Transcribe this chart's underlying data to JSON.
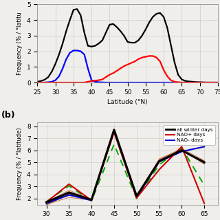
{
  "top_panel": {
    "latitudes": [
      25,
      26,
      27,
      28,
      29,
      30,
      31,
      32,
      33,
      34,
      35,
      36,
      37,
      38,
      39,
      40,
      41,
      42,
      43,
      44,
      45,
      46,
      47,
      48,
      49,
      50,
      51,
      52,
      53,
      54,
      55,
      56,
      57,
      58,
      59,
      60,
      61,
      62,
      63,
      64,
      65,
      66,
      67,
      68,
      69,
      70,
      71,
      72,
      73,
      74,
      75
    ],
    "black_line": [
      0.05,
      0.1,
      0.18,
      0.35,
      0.7,
      1.2,
      1.8,
      2.5,
      3.3,
      4.0,
      4.65,
      4.7,
      4.3,
      3.2,
      2.35,
      2.3,
      2.35,
      2.5,
      2.7,
      3.2,
      3.7,
      3.75,
      3.55,
      3.3,
      3.0,
      2.6,
      2.55,
      2.55,
      2.7,
      3.0,
      3.4,
      3.85,
      4.2,
      4.4,
      4.45,
      4.2,
      3.5,
      2.4,
      1.3,
      0.5,
      0.2,
      0.1,
      0.07,
      0.05,
      0.03,
      0.02,
      0.01,
      0.0,
      0.0,
      0.0,
      0.0
    ],
    "blue_line": [
      0.0,
      0.0,
      0.0,
      0.02,
      0.05,
      0.15,
      0.4,
      0.9,
      1.5,
      1.9,
      2.05,
      2.05,
      2.0,
      1.8,
      0.9,
      0.15,
      0.05,
      0.02,
      0.01,
      0.0,
      0.0,
      0.0,
      0.0,
      0.0,
      0.0,
      0.0,
      0.0,
      0.0,
      0.0,
      0.0,
      0.0,
      0.0,
      0.0,
      0.0,
      0.0,
      0.0,
      0.0,
      0.0,
      0.0,
      0.0,
      0.0,
      0.0,
      0.0,
      0.0,
      0.0,
      0.0,
      0.0,
      0.0,
      0.0,
      0.0,
      0.0
    ],
    "red_line": [
      0.0,
      0.0,
      0.0,
      0.0,
      0.0,
      0.0,
      0.0,
      0.0,
      0.0,
      0.0,
      0.0,
      0.0,
      0.0,
      0.0,
      0.05,
      0.1,
      0.12,
      0.15,
      0.2,
      0.35,
      0.5,
      0.6,
      0.75,
      0.9,
      1.05,
      1.15,
      1.25,
      1.35,
      1.5,
      1.6,
      1.65,
      1.7,
      1.7,
      1.6,
      1.35,
      0.8,
      0.4,
      0.15,
      0.05,
      0.02,
      0.0,
      0.0,
      0.0,
      0.0,
      0.0,
      0.0,
      0.0,
      0.0,
      0.0,
      0.0,
      0.0
    ],
    "xlabel": "Latitude (°N)",
    "ylabel": "Frequency (% / °latitu",
    "xlim": [
      25,
      75
    ],
    "ylim": [
      0,
      5
    ],
    "yticks": [
      0,
      1,
      2,
      3,
      4,
      5
    ],
    "xticks": [
      25,
      30,
      35,
      40,
      45,
      50,
      55,
      60,
      65,
      70,
      75
    ]
  },
  "bottom_panel": {
    "latitudes": [
      30,
      35,
      40,
      45,
      50,
      55,
      60,
      65
    ],
    "black_line": [
      1.7,
      2.5,
      1.9,
      7.7,
      2.2,
      5.1,
      6.0,
      5.0
    ],
    "red_line": [
      1.7,
      3.2,
      1.85,
      7.5,
      2.05,
      4.4,
      6.3,
      1.6
    ],
    "blue_line": [
      1.6,
      2.3,
      1.85,
      7.6,
      2.1,
      5.05,
      5.9,
      6.3
    ],
    "multi_lines": [
      [
        1.5,
        2.1,
        1.85,
        7.55,
        2.15,
        5.15,
        5.95,
        5.1
      ],
      [
        1.65,
        2.6,
        1.9,
        7.65,
        2.25,
        5.3,
        6.1,
        4.9
      ],
      [
        1.55,
        2.4,
        1.88,
        7.58,
        2.2,
        5.05,
        6.0,
        5.0
      ],
      [
        1.7,
        2.7,
        1.92,
        7.62,
        2.1,
        5.2,
        6.05,
        4.85
      ],
      [
        1.45,
        2.35,
        1.87,
        7.52,
        2.18,
        5.25,
        6.15,
        5.15
      ],
      [
        1.6,
        2.55,
        1.9,
        7.68,
        2.22,
        5.08,
        6.02,
        4.95
      ],
      [
        1.55,
        2.45,
        1.89,
        7.7,
        2.2,
        5.12,
        5.98,
        5.05
      ],
      [
        1.5,
        2.38,
        1.86,
        7.55,
        2.17,
        5.07,
        5.93,
        5.1
      ],
      [
        1.62,
        2.5,
        1.91,
        7.6,
        2.23,
        5.18,
        6.08,
        4.92
      ],
      [
        1.48,
        2.42,
        1.88,
        7.57,
        2.19,
        5.1,
        5.96,
        5.08
      ]
    ],
    "dashed_green_line": [
      1.75,
      3.05,
      1.8,
      6.5,
      2.0,
      4.8,
      6.2,
      3.1
    ],
    "xlabel": "Latitude (°N)",
    "ylabel": "Frequency (% / °latitude)",
    "xlim": [
      28,
      68
    ],
    "ylim": [
      1.5,
      8.3
    ],
    "yticks": [
      2,
      3,
      4,
      5,
      6,
      7,
      8
    ],
    "xticks": [
      30,
      35,
      40,
      45,
      50,
      55,
      60,
      65
    ],
    "legend": [
      {
        "label": "all winter days",
        "color": "#000000",
        "lw": 2.0
      },
      {
        "label": "NAO+ days",
        "color": "#cc0000",
        "lw": 1.5
      },
      {
        "label": "NAO- days",
        "color": "#0000cc",
        "lw": 1.5
      }
    ],
    "multi_colors": [
      "#c8703a",
      "#d4855a",
      "#b86030",
      "#cc7a4a",
      "#c06835",
      "#d07848",
      "#ba6838",
      "#c47040",
      "#ce7c4c",
      "#b86535"
    ]
  },
  "background_color": "#f0eeea",
  "panel_label_b": "(b)"
}
